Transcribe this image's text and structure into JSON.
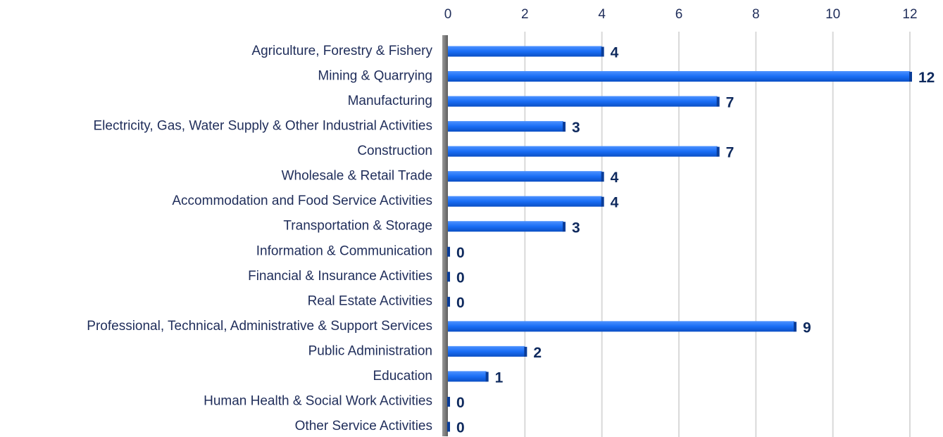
{
  "chart_data": {
    "type": "bar",
    "orientation": "horizontal",
    "categories": [
      "Agriculture, Forestry & Fishery",
      "Mining & Quarrying",
      "Manufacturing",
      "Electricity, Gas, Water Supply & Other Industrial Activities",
      "Construction",
      "Wholesale & Retail Trade",
      "Accommodation and Food Service Activities",
      "Transportation & Storage",
      "Information & Communication",
      "Financial & Insurance Activities",
      "Real Estate Activities",
      "Professional, Technical, Administrative & Support Services",
      "Public Administration",
      "Education",
      "Human Health & Social Work Activities",
      "Other Service Activities"
    ],
    "values": [
      4,
      12,
      7,
      3,
      7,
      4,
      4,
      3,
      0,
      0,
      0,
      9,
      2,
      1,
      0,
      0
    ],
    "color": "#1a6ef5",
    "xlim": [
      0,
      12
    ],
    "xticks": [
      0,
      2,
      4,
      6,
      8,
      10,
      12
    ],
    "grid": true
  }
}
